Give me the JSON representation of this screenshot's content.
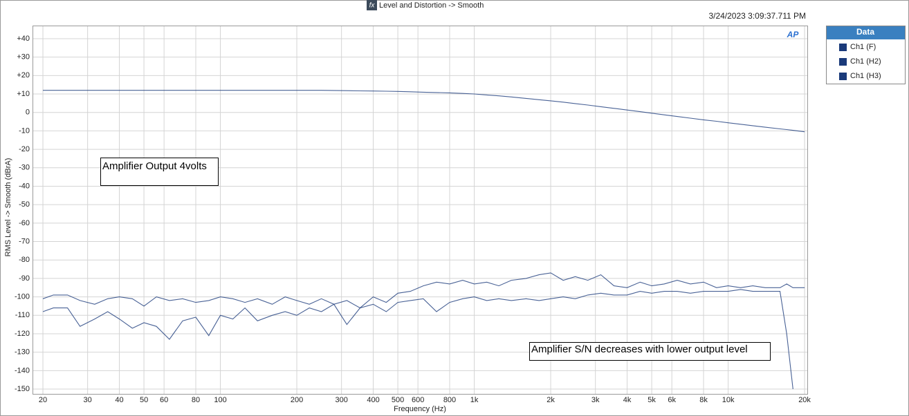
{
  "chart_data": {
    "type": "line",
    "icon": "fx",
    "title": "Level and Distortion -> Smooth",
    "timestamp": "3/24/2023 3:09:37.711 PM",
    "logo": "AP",
    "y_label": "RMS Level -> Smooth (dBrA)",
    "x_label": "Frequency (Hz)",
    "legend_title": "Data",
    "legend": "right",
    "log_x": true,
    "grid": true,
    "annotations": [
      "Amplifier Output 4volts",
      "Amplifier S/N decreases with lower output level"
    ],
    "xlim": [
      18.2,
      20500
    ],
    "ylim": [
      -152.6,
      47.1
    ],
    "xticks": [
      20,
      30,
      40,
      50,
      60,
      80,
      100,
      200,
      300,
      400,
      500,
      600,
      800,
      {
        "value": 1000,
        "label": "1k"
      },
      {
        "value": 2000,
        "label": "2k"
      },
      {
        "value": 3000,
        "label": "3k"
      },
      {
        "value": 4000,
        "label": "4k"
      },
      {
        "value": 5000,
        "label": "5k"
      },
      {
        "value": 6000,
        "label": "6k"
      },
      {
        "value": 8000,
        "label": "8k"
      },
      {
        "value": 10000,
        "label": "10k"
      },
      {
        "value": 20000,
        "label": "20k"
      }
    ],
    "yticks": [
      {
        "value": 40,
        "label": "+40"
      },
      {
        "value": 30,
        "label": "+30"
      },
      {
        "value": 20,
        "label": "+20"
      },
      {
        "value": 10,
        "label": "+10"
      },
      0,
      -10,
      -20,
      -30,
      -40,
      -50,
      -60,
      -70,
      -80,
      -90,
      -100,
      -110,
      -120,
      -130,
      -140,
      -150
    ],
    "x": [
      20,
      22,
      25,
      28,
      32,
      36,
      40,
      45,
      50,
      56,
      63,
      71,
      80,
      90,
      100,
      112,
      125,
      140,
      160,
      180,
      200,
      224,
      250,
      280,
      315,
      355,
      400,
      450,
      500,
      560,
      630,
      710,
      800,
      900,
      1000,
      1120,
      1250,
      1400,
      1600,
      1800,
      2000,
      2240,
      2500,
      2800,
      3150,
      3550,
      4000,
      4500,
      5000,
      5600,
      6300,
      7100,
      8000,
      9000,
      10000,
      11200,
      12500,
      14000,
      16000,
      17000,
      18000,
      19000,
      20000
    ],
    "series": [
      {
        "name": "Ch1 (F)",
        "color": "#1a3a7a",
        "values": [
          12,
          12,
          12,
          12,
          12,
          12,
          12,
          12,
          12,
          12,
          12,
          12,
          12,
          12,
          12,
          12,
          12,
          12,
          12,
          12,
          12,
          12,
          12,
          11.9,
          11.8,
          11.7,
          11.6,
          11.5,
          11.4,
          11.2,
          11.0,
          10.8,
          10.6,
          10.3,
          10.0,
          9.5,
          9.0,
          8.4,
          7.6,
          6.9,
          6.3,
          5.6,
          4.8,
          4.0,
          3.1,
          2.2,
          1.3,
          0.4,
          -0.4,
          -1.3,
          -2.2,
          -3.1,
          -4.0,
          -4.8,
          -5.6,
          -6.4,
          -7.2,
          -8.0,
          -8.9,
          -9.3,
          -9.7,
          -10.1,
          -10.5
        ]
      },
      {
        "name": "Ch1 (H2)",
        "color": "#1a3a7a",
        "values": [
          -108,
          -106,
          -106,
          -116,
          -112,
          -108,
          -112,
          -117,
          -114,
          -116,
          -123,
          -113,
          -111,
          -121,
          -110,
          -112,
          -106,
          -113,
          -110,
          -108,
          -110,
          -106,
          -108,
          -104,
          -115,
          -106,
          -104,
          -108,
          -103,
          -102,
          -101,
          -108,
          -103,
          -101,
          -100,
          -102,
          -101,
          -102,
          -101,
          -102,
          -101,
          -100,
          -101,
          -99,
          -98,
          -99,
          -99,
          -97,
          -98,
          -97,
          -97,
          -98,
          -97,
          -97,
          -97,
          -96,
          -97,
          -97,
          -97,
          -120,
          -150,
          null,
          null
        ]
      },
      {
        "name": "Ch1 (H3)",
        "color": "#1a3a7a",
        "values": [
          -101,
          -99,
          -99,
          -102,
          -104,
          -101,
          -100,
          -101,
          -105,
          -100,
          -102,
          -101,
          -103,
          -102,
          -100,
          -101,
          -103,
          -101,
          -104,
          -100,
          -102,
          -104,
          -101,
          -104,
          -102,
          -106,
          -100,
          -103,
          -98,
          -97,
          -94,
          -92,
          -93,
          -91,
          -93,
          -92,
          -94,
          -91,
          -90,
          -88,
          -87,
          -91,
          -89,
          -91,
          -88,
          -94,
          -95,
          -92,
          -94,
          -93,
          -91,
          -93,
          -92,
          -95,
          -94,
          -95,
          -94,
          -95,
          -95,
          -93,
          -95,
          -95,
          -95
        ]
      }
    ]
  }
}
